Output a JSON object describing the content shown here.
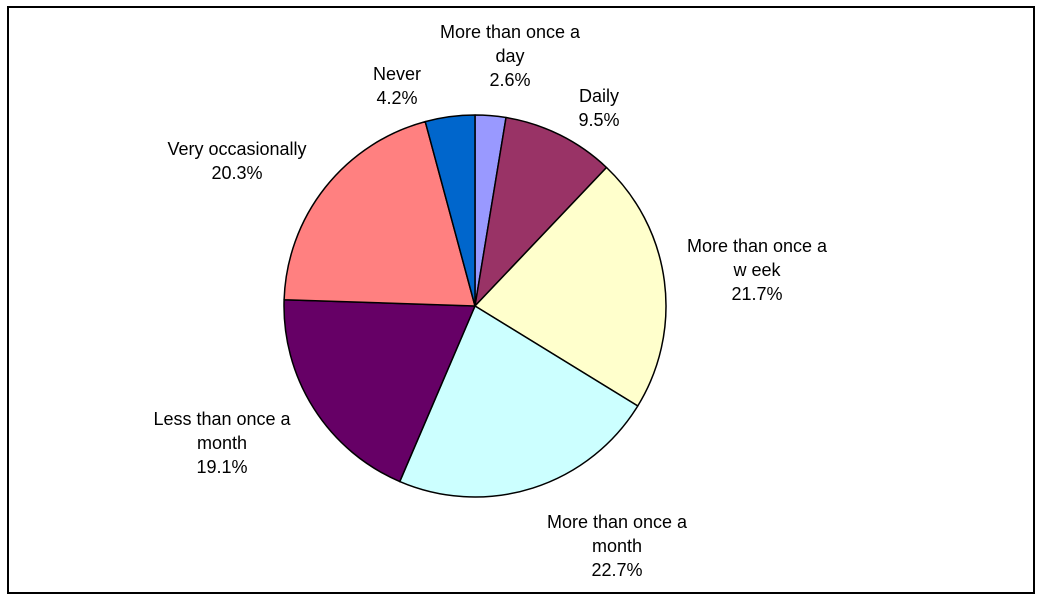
{
  "chart_data": {
    "type": "pie",
    "title": "",
    "start_angle_deg": 0,
    "direction": "clockwise",
    "slices": [
      {
        "label_lines": [
          "More than once a",
          "day"
        ],
        "label": "More than once a day",
        "value": 2.6,
        "value_text": "2.6%",
        "color": "#9999ff"
      },
      {
        "label_lines": [
          "Daily"
        ],
        "label": "Daily",
        "value": 9.5,
        "value_text": "9.5%",
        "color": "#993366"
      },
      {
        "label_lines": [
          "More than once a",
          "w eek"
        ],
        "label": "More than once a w eek",
        "value": 21.7,
        "value_text": "21.7%",
        "color": "#ffffcc"
      },
      {
        "label_lines": [
          "More than once a",
          "month"
        ],
        "label": "More than once a month",
        "value": 22.7,
        "value_text": "22.7%",
        "color": "#ccffff"
      },
      {
        "label_lines": [
          "Less than once a",
          "month"
        ],
        "label": "Less than once a month",
        "value": 19.1,
        "value_text": "19.1%",
        "color": "#660066"
      },
      {
        "label_lines": [
          "Very occasionally"
        ],
        "label": "Very occasionally",
        "value": 20.3,
        "value_text": "20.3%",
        "color": "#ff8080"
      },
      {
        "label_lines": [
          "Never"
        ],
        "label": "Never",
        "value": 4.2,
        "value_text": "4.2%",
        "color": "#0066cc"
      }
    ]
  }
}
